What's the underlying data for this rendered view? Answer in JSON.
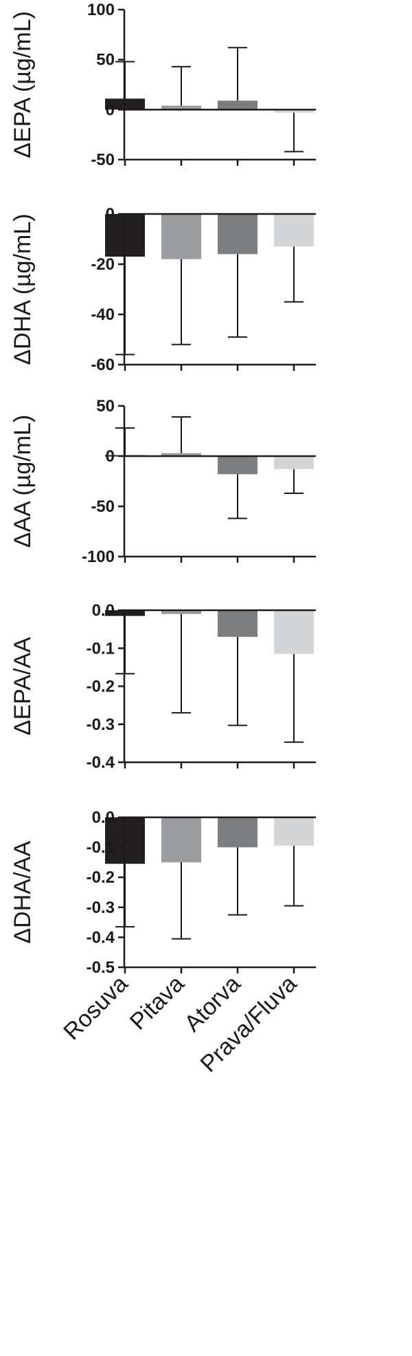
{
  "chart_data": [
    {
      "type": "bar",
      "ylabel": "ΔEPA (µg/mL)",
      "categories": [
        "Rosuva",
        "Pitava",
        "Atorva",
        "Prava/Fluva"
      ],
      "values": [
        11,
        4,
        9,
        -3
      ],
      "error_bars": [
        48,
        43,
        62,
        -42
      ],
      "ylim": [
        -50,
        100
      ],
      "yticks": [
        "-50",
        "0",
        "50",
        "100"
      ],
      "colors": [
        "#231f20",
        "#9a9ca0",
        "#7d7e80",
        "#d4d5d6"
      ]
    },
    {
      "type": "bar",
      "ylabel": "ΔDHA (µg/mL)",
      "categories": [
        "Rosuva",
        "Pitava",
        "Atorva",
        "Prava/Fluva"
      ],
      "values": [
        -17,
        -18,
        -16,
        -13
      ],
      "error_bars": [
        -56,
        -52,
        -49,
        -35
      ],
      "ylim": [
        -60,
        0
      ],
      "yticks": [
        "-60",
        "-40",
        "-20",
        "0"
      ],
      "colors": [
        "#231f20",
        "#9a9ca0",
        "#7d7e80",
        "#d4d5d6"
      ]
    },
    {
      "type": "bar",
      "ylabel": "ΔAA (µg/mL)",
      "categories": [
        "Rosuva",
        "Pitava",
        "Atorva",
        "Prava/Fluva"
      ],
      "values": [
        1,
        3,
        -18,
        -13
      ],
      "error_bars": [
        28,
        39,
        -62,
        -37
      ],
      "ylim": [
        -100,
        50
      ],
      "yticks": [
        "-100",
        "-50",
        "0",
        "50"
      ],
      "colors": [
        "#231f20",
        "#9a9ca0",
        "#7d7e80",
        "#d4d5d6"
      ]
    },
    {
      "type": "bar",
      "ylabel": "ΔEPA/AA",
      "categories": [
        "Rosuva",
        "Pitava",
        "Atorva",
        "Prava/Fluva"
      ],
      "values": [
        -0.015,
        -0.01,
        -0.07,
        -0.115
      ],
      "error_bars": [
        -0.167,
        -0.27,
        -0.303,
        -0.347
      ],
      "ylim": [
        -0.4,
        0.0
      ],
      "yticks": [
        "-0.4",
        "-0.3",
        "-0.2",
        "-0.1",
        "0.0"
      ],
      "colors": [
        "#231f20",
        "#9a9ca0",
        "#7d7e80",
        "#d4d5d6"
      ]
    },
    {
      "type": "bar",
      "ylabel": "ΔDHA/AA",
      "categories": [
        "Rosuva",
        "Pitava",
        "Atorva",
        "Prava/Fluva"
      ],
      "values": [
        -0.155,
        -0.15,
        -0.1,
        -0.095
      ],
      "error_bars": [
        -0.365,
        -0.405,
        -0.325,
        -0.295
      ],
      "ylim": [
        -0.5,
        0.0
      ],
      "yticks": [
        "-0.5",
        "-0.4",
        "-0.3",
        "-0.2",
        "-0.1",
        "0.0"
      ],
      "colors": [
        "#231f20",
        "#9a9ca0",
        "#7d7e80",
        "#d4d5d6"
      ]
    }
  ],
  "x_axis": {
    "labels": [
      "Rosuva",
      "Pitava",
      "Atorva",
      "Prava/Fluva"
    ]
  }
}
